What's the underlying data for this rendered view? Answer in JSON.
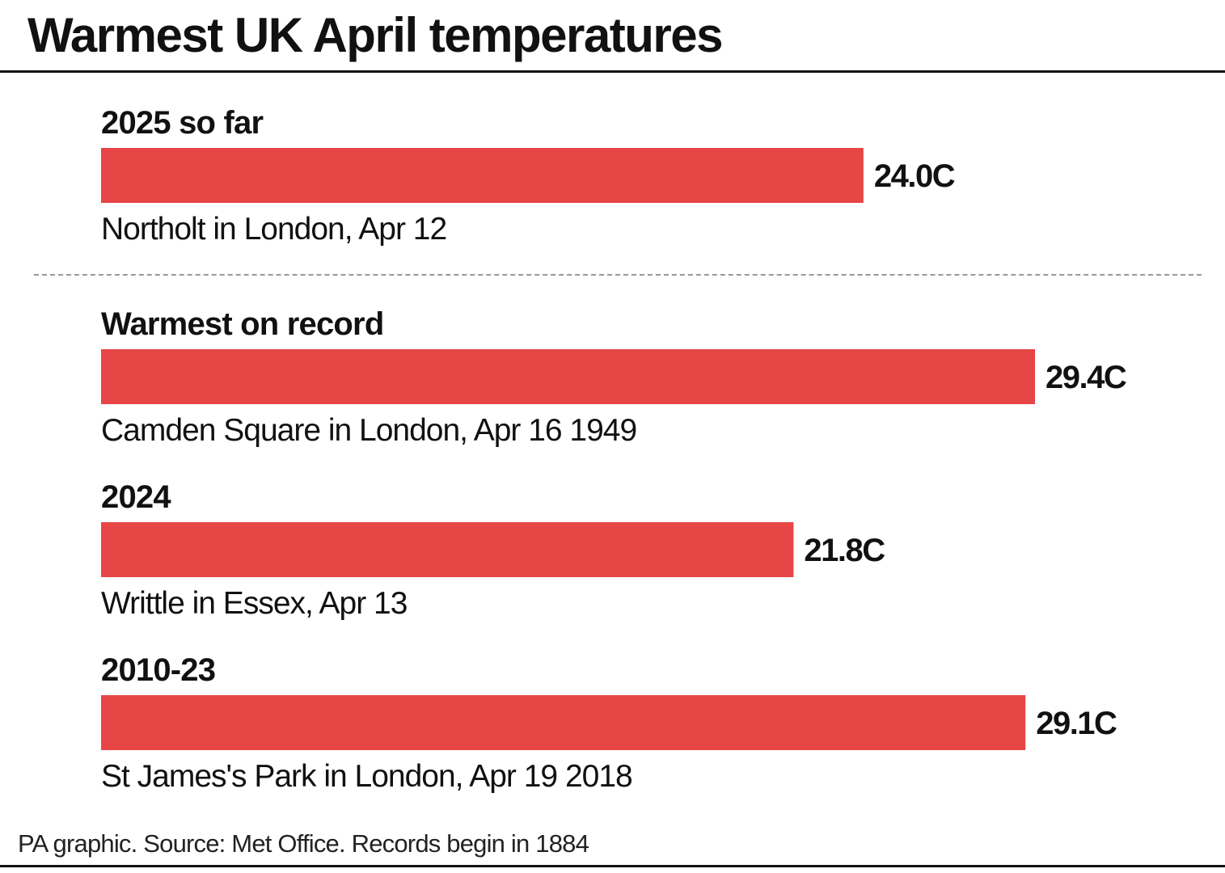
{
  "title": "Warmest UK April temperatures",
  "footer": "PA graphic. Source: Met Office. Records begin in 1884",
  "colors": {
    "bar": "#e64646",
    "text": "#111111",
    "divider": "#9a9a9a"
  },
  "chart_data": {
    "type": "bar",
    "orientation": "horizontal",
    "unit": "C",
    "xlim": [
      0,
      29.4
    ],
    "grid": false,
    "categories": [
      "2025 so far",
      "Warmest on record",
      "2024",
      "2010-23"
    ],
    "values": [
      24.0,
      29.4,
      21.8,
      29.1
    ],
    "value_labels": [
      "24.0C",
      "29.4C",
      "21.8C",
      "29.1C"
    ],
    "locations": [
      "Northolt in London, Apr 12",
      "Camden Square in London, Apr 16 1949",
      "Writtle in Essex, Apr 13",
      "St James's Park in London, Apr 19 2018"
    ]
  }
}
